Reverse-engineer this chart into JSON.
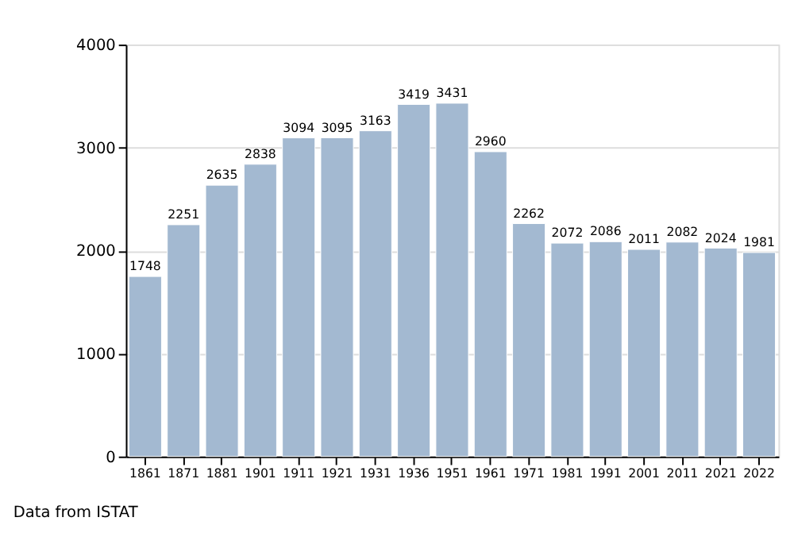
{
  "chart_data": {
    "type": "bar",
    "categories": [
      "1861",
      "1871",
      "1881",
      "1901",
      "1911",
      "1921",
      "1931",
      "1936",
      "1951",
      "1961",
      "1971",
      "1981",
      "1991",
      "2001",
      "2011",
      "2021",
      "2022"
    ],
    "values": [
      1748,
      2251,
      2635,
      2838,
      3094,
      3095,
      3163,
      3419,
      3431,
      2960,
      2262,
      2072,
      2086,
      2011,
      2082,
      2024,
      1981
    ],
    "color": "#a3b9d1",
    "ylim": [
      0,
      4000
    ],
    "yticks": [
      0,
      1000,
      2000,
      3000,
      4000
    ],
    "grid": "y",
    "data_labels": true,
    "annotations": [
      "Data from ISTAT"
    ]
  }
}
